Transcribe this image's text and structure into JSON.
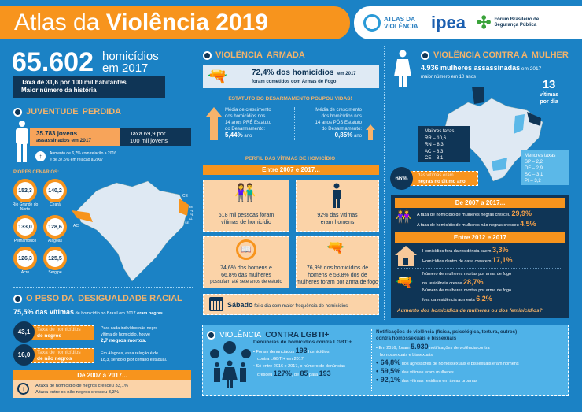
{
  "header": {
    "title_light": "Atlas da",
    "title_bold": "Violência 2019",
    "logos": [
      "ATLAS DA VIOLÊNCIA",
      "ipea",
      "Fórum Brasileiro de Segurança Pública"
    ]
  },
  "intro": {
    "number": "65.602",
    "label1": "homicídios",
    "label2": "em 2017",
    "rate": "Taxa de 31,6 por 100 mil habitantes",
    "record": "Maior número da história"
  },
  "youth": {
    "title_a": "JUVENTUDE",
    "title_b": "PERDIDA",
    "count": "35.783 jovens",
    "count_sub": "assassinados em 2017",
    "rate1": "Taxa 69,9 por",
    "rate2": "100 mil jovens",
    "inc1": "Aumento de 6,7% com relação a 2016",
    "inc2": "e de 37,5% em relação a 2007",
    "worst_title": "PIORES CENÁRIOS:",
    "worst": [
      {
        "value": "152,3",
        "state": "Rio Grande do Norte"
      },
      {
        "value": "140,2",
        "state": "Ceará"
      },
      {
        "value": "133,0",
        "state": "Pernambuco"
      },
      {
        "value": "128,6",
        "state": "Alagoas"
      },
      {
        "value": "126,3",
        "state": "Acre"
      },
      {
        "value": "125,5",
        "state": "Sergipe"
      }
    ],
    "map_labels": [
      "CE",
      "RN",
      "PB",
      "PE",
      "AL",
      "SE",
      "AC"
    ]
  },
  "racial": {
    "title_a": "O PESO DA",
    "title_b": "DESIGUALDADE RACIAL",
    "lead_bold": "75,5% das vítimas",
    "lead_mid": "de homicídio no Brasil em 2017",
    "lead_end": "eram negras",
    "black_rate": "43,1",
    "black_label1": "Taxa de homicídios",
    "black_label2": "de negros",
    "nonblack_rate": "16,0",
    "nonblack_label1": "Taxa de homicídios",
    "nonblack_label2": "de não negros",
    "note1a": "Para cada indivíduo não negro",
    "note1b": "vítima de homicídio, houve",
    "note1c": "2,7 negros mortos.",
    "note2a": "Em Alagoas, essa relação é de",
    "note2b": "18,3, sendo o pior cenário estadual.",
    "period": "De 2007 a 2017...",
    "trend1": "A taxa de homicídio de negros cresceu 33,1%",
    "trend2": "A taxa entre os não negros cresceu 3,3%"
  },
  "armed": {
    "title_a": "VIOLÊNCIA",
    "title_b": "ARMADA",
    "stat": "72,4% dos homicídios",
    "stat_year": "em 2017",
    "stat_sub": "foram cometidos com Armas de Fogo",
    "estatuto_title": "ESTATUTO DO DESARMAMENTO POUPOU VIDAS!",
    "pre": [
      "Média de crescimento",
      "dos homicídios nos",
      "14 anos PRÉ Estatuto",
      "do Desarmamento:"
    ],
    "pre_value": "5,44%",
    "post": [
      "Média de crescimento",
      "dos homicídios nos",
      "14 anos PÓS Estatuto",
      "do Desarmamento:"
    ],
    "post_value": "0,85%",
    "per_year": "ano"
  },
  "profile": {
    "title": "PERFIL DAS VÍTIMAS DE HOMICÍDIO",
    "period": "Entre 2007 e 2017...",
    "cards": [
      {
        "l1": "618 mil pessoas foram",
        "l2": "vítimas de homicídio"
      },
      {
        "l1": "92% das vítimas",
        "l2": "eram homens"
      },
      {
        "l1": "74,6% dos homens e",
        "l2": "66,8% das mulheres",
        "l3": "possuíam até sete anos de estudo"
      },
      {
        "l1": "76,9% dos homicídios de",
        "l2": "homens e 53,8% dos de",
        "l3": "mulheres foram por arma de fogo"
      }
    ],
    "saturday_bold": "Sábado",
    "saturday_rest": "foi o dia com maior frequência de homicídios"
  },
  "women": {
    "title_a": "VIOLÊNCIA CONTRA A",
    "title_b": "MULHER",
    "count": "4.936 mulheres assassinadas",
    "count_rest": "em 2017 –",
    "sub": "maior número em 10 anos",
    "per_day_n": "13",
    "per_day_l1": "vítimas",
    "per_day_l2": "por dia",
    "highest_title": "Maiores taxas",
    "highest": [
      "RR – 10,6",
      "RN – 8,3",
      "AC – 8,3",
      "CE – 8,1"
    ],
    "lowest_title": "Menores taxas",
    "lowest": [
      "SP – 2,2",
      "DF – 2,9",
      "SC – 3,1",
      "PI – 3,2"
    ],
    "black_pct": "66%",
    "black_l1": "das vítimas eram",
    "black_l2": "negras no último ano",
    "period1": "De 2007 a 2017...",
    "p1a": "A taxa de homicídio de mulheres negras cresceu",
    "p1a_v": "29,9%",
    "p1b": "A taxa de homicídio de mulheres não negras cresceu",
    "p1b_v": "4,5%",
    "period2": "Entre 2012 e 2017",
    "h1": "Homicídios fora da residência caem",
    "h1_v": "3,3%",
    "h2": "Homicídios dentro de casa crescem",
    "h2_v": "17,1%",
    "g1a": "Número de mulheres mortas por arma de fogo",
    "g1b": "na residência cresce",
    "g1_v": "28,7%",
    "g2a": "Número de mulheres mortas por arma de fogo",
    "g2b": "fora da residência aumenta",
    "g2_v": "6,2%",
    "question": "Aumento dos homicídios de mulheres ou dos feminicídios?"
  },
  "lgbti": {
    "title_a": "VIOLÊNCIA",
    "title_b": "CONTRA LGBTI+",
    "sub": "Denúncias de homicídios contra LGBTI+",
    "b1a": "• Foram denunciados",
    "b1n": "193",
    "b1b": "homicídios",
    "b1c": "contra LGBTI+ em 2017",
    "b2a": "• Só entre 2016 e 2017, o número de denúncias",
    "b2b": "cresceu",
    "b2n": "127%",
    "b2c": ", de",
    "b2d": "85",
    "b2e": "para",
    "b2f": "193",
    "notif_title1": "Notificações de violência (física, psicológica, tortura, outros)",
    "notif_title2": "contra homossexuais e bissexuais",
    "n1a": "• Em 2016, foram",
    "n1n": "5.930",
    "n1b": "notificações de violência contra",
    "n1c": "homossexuais e bissexuais",
    "stats": [
      {
        "v": "64,8%",
        "t": "dos agressores de homossexuais e bissexuais eram homens"
      },
      {
        "v": "59,5%",
        "t": "das vítimas eram mulheres"
      },
      {
        "v": "92,1%",
        "t": "das vítimas residiam em áreas urbanas"
      }
    ]
  },
  "colors": {
    "bg": "#1b82c5",
    "navy": "#0f3556",
    "orange": "#f7941d",
    "peach": "#fbd3a8",
    "light": "#4fb2e8"
  }
}
